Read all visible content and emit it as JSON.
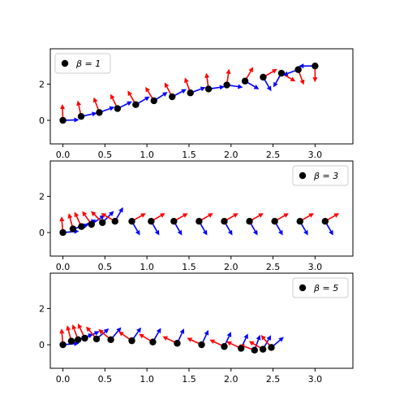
{
  "colors": {
    "tangent": "#0000ff",
    "normal": "#ff0000",
    "point": "#000000"
  },
  "chart_data": [
    {
      "type": "scatter",
      "legend": "β = 1",
      "legend_position": "upper-left",
      "xlim": [
        -0.15,
        3.45
      ],
      "ylim": [
        -1.3,
        3.95
      ],
      "xticks": [
        "0.0",
        "0.5",
        "1.0",
        "1.5",
        "2.0",
        "2.5",
        "3.0"
      ],
      "yticks": [
        "0",
        "2"
      ],
      "points": [
        [
          0,
          0
        ],
        [
          0.217,
          0.217
        ],
        [
          0.433,
          0.433
        ],
        [
          0.65,
          0.65
        ],
        [
          0.867,
          0.867
        ],
        [
          1.083,
          1.083
        ],
        [
          1.3,
          1.3
        ],
        [
          1.517,
          1.517
        ],
        [
          1.733,
          1.733
        ],
        [
          1.95,
          1.95
        ],
        [
          2.167,
          2.167
        ],
        [
          2.383,
          2.383
        ],
        [
          2.6,
          2.6
        ],
        [
          2.8,
          2.8
        ],
        [
          3.0,
          3.0
        ]
      ],
      "angles": [
        2,
        12,
        20,
        26,
        30,
        32,
        28,
        20,
        8,
        -8,
        -30,
        -60,
        -120,
        -160,
        180
      ]
    },
    {
      "type": "scatter",
      "legend": "β = 3",
      "legend_position": "upper-right",
      "xlim": [
        -0.15,
        3.45
      ],
      "ylim": [
        -1.3,
        3.95
      ],
      "xticks": [
        "0.0",
        "0.5",
        "1.0",
        "1.5",
        "2.0",
        "2.5",
        "3.0"
      ],
      "yticks": [
        "0",
        "2"
      ],
      "points": [
        [
          0,
          0
        ],
        [
          0.12,
          0.2
        ],
        [
          0.22,
          0.33
        ],
        [
          0.34,
          0.45
        ],
        [
          0.47,
          0.55
        ],
        [
          0.62,
          0.62
        ],
        [
          0.82,
          0.62
        ],
        [
          1.05,
          0.62
        ],
        [
          1.32,
          0.62
        ],
        [
          1.62,
          0.62
        ],
        [
          1.92,
          0.62
        ],
        [
          2.22,
          0.62
        ],
        [
          2.52,
          0.62
        ],
        [
          2.82,
          0.62
        ],
        [
          3.12,
          0.62
        ]
      ],
      "angles": [
        5,
        15,
        25,
        35,
        45,
        60,
        -60,
        -60,
        -60,
        -60,
        -60,
        -60,
        -60,
        -60,
        -60
      ]
    },
    {
      "type": "scatter",
      "legend": "β = 5",
      "legend_position": "upper-right",
      "xlim": [
        -0.15,
        3.45
      ],
      "ylim": [
        -1.3,
        3.95
      ],
      "xticks": [
        "0.0",
        "0.5",
        "1.0",
        "1.5",
        "2.0",
        "2.5",
        "3.0"
      ],
      "yticks": [
        "0",
        "2"
      ],
      "points": [
        [
          0,
          0
        ],
        [
          0.1,
          0.2
        ],
        [
          0.18,
          0.28
        ],
        [
          0.26,
          0.36
        ],
        [
          0.4,
          0.32
        ],
        [
          0.57,
          0.28
        ],
        [
          0.82,
          0.22
        ],
        [
          1.07,
          0.15
        ],
        [
          1.36,
          0.08
        ],
        [
          1.65,
          0
        ],
        [
          1.92,
          -0.1
        ],
        [
          2.12,
          -0.2
        ],
        [
          2.28,
          -0.3
        ],
        [
          2.38,
          -0.25
        ],
        [
          2.48,
          -0.15
        ]
      ],
      "angles": [
        5,
        15,
        20,
        25,
        40,
        50,
        55,
        60,
        65,
        65,
        65,
        65,
        70,
        60,
        40
      ]
    }
  ]
}
